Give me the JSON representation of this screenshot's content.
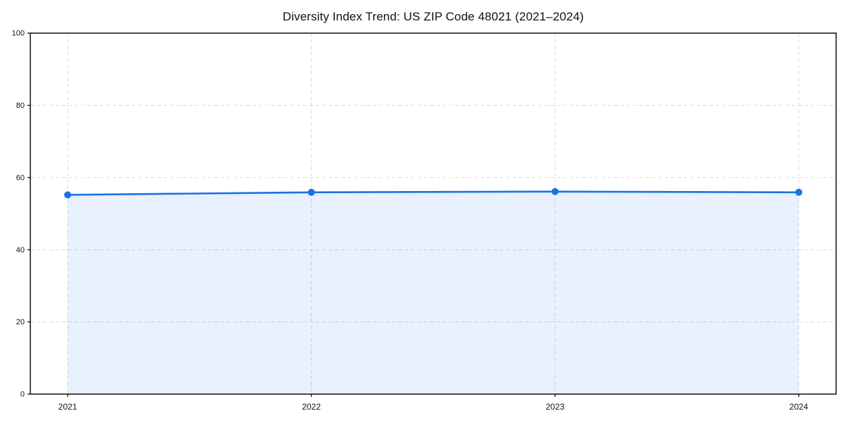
{
  "page": {
    "background_color": "#ffffff"
  },
  "chart_data": {
    "type": "area",
    "title": "Diversity Index Trend: US ZIP Code 48021 (2021–2024)",
    "categories": [
      "2021",
      "2022",
      "2023",
      "2024"
    ],
    "x": [
      2021,
      2022,
      2023,
      2024
    ],
    "series": [
      {
        "name": "Diversity Index",
        "values": [
          55.2,
          55.9,
          56.1,
          55.9
        ]
      }
    ],
    "xlabel": "",
    "ylabel": "",
    "ylim": [
      0,
      100
    ],
    "y_ticks": [
      0,
      20,
      40,
      60,
      80,
      100
    ],
    "grid": true,
    "grid_style": "dashed",
    "legend": false,
    "line_color": "#1a73e8",
    "marker": "circle",
    "marker_radius": 5,
    "fill_below": true,
    "fill_color": "#1a73e8",
    "fill_opacity": 0.1,
    "axis_color": "#000000",
    "grid_color": "#d9d9d9",
    "tick_label_color": "#151515"
  }
}
